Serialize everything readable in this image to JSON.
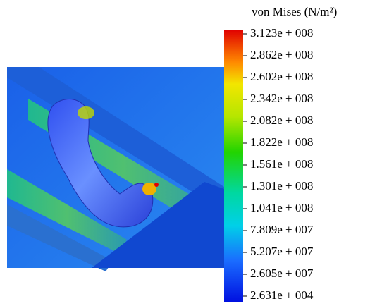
{
  "legend": {
    "title": "von Mises (N/m²)",
    "labels": [
      "3.123e + 008",
      "2.862e + 008",
      "2.602e + 008",
      "2.342e + 008",
      "2.082e + 008",
      "1.822e + 008",
      "1.561e + 008",
      "1.301e + 008",
      "1.041e + 008",
      "7.809e + 007",
      "5.207e + 007",
      "2.605e + 007",
      "2.631e + 004"
    ]
  }
}
